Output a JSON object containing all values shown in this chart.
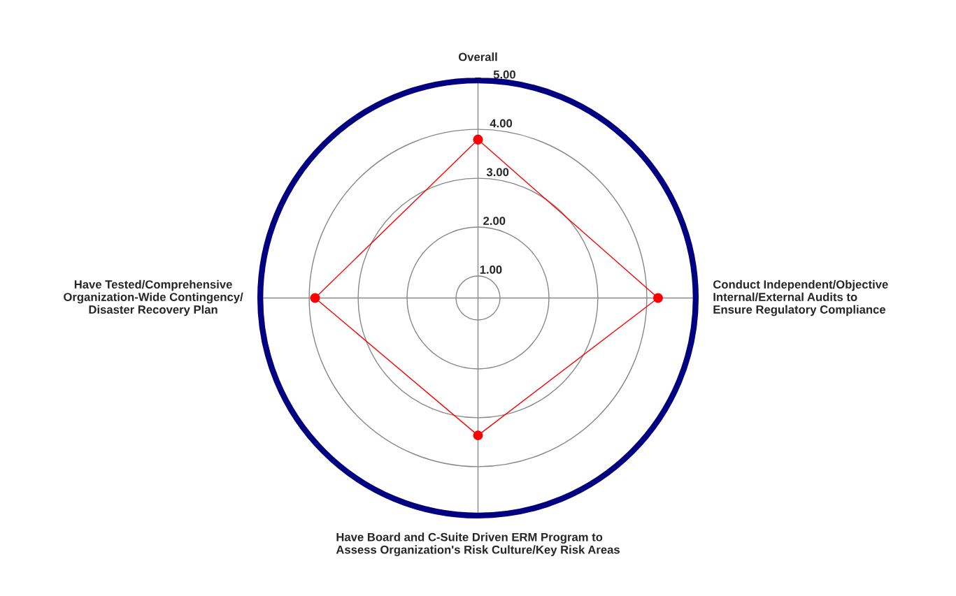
{
  "chart_data": {
    "type": "radar",
    "categories": [
      "Overall",
      "Conduct Independent/Objective\nInternal/External Audits to\nEnsure Regulatory Compliance",
      "Have Board and C-Suite Driven ERM Program to\nAssess Organization's Risk Culture/Key Risk Areas",
      "Have Tested/Comprehensive\nOrganization-Wide Contingency/\nDisaster Recovery Plan"
    ],
    "series": [
      {
        "color": "#ff0000",
        "values": [
          3.79,
          4.23,
          3.36,
          3.88
        ]
      }
    ],
    "ylim": [
      0.55,
      5
    ],
    "yticks": [
      {
        "value": 1,
        "label": "1.00"
      },
      {
        "value": 2,
        "label": "2.00"
      },
      {
        "value": 3,
        "label": "3.00"
      },
      {
        "value": 4,
        "label": "4.00"
      },
      {
        "value": 5,
        "label": "5.00"
      }
    ],
    "grid": true,
    "marker": "circle",
    "line_style": "solid"
  }
}
